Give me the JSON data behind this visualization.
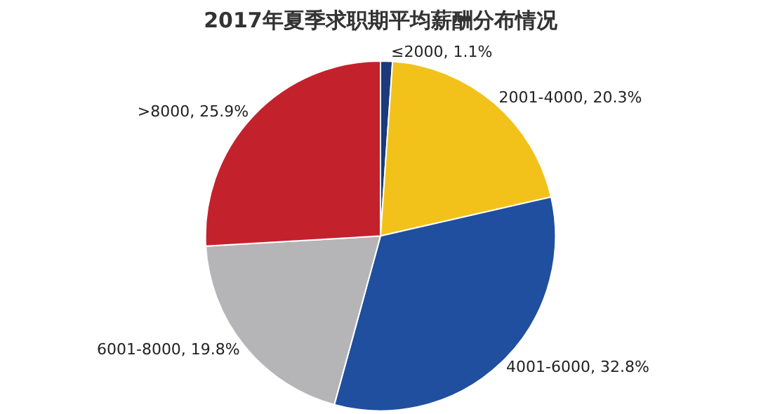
{
  "chart_data": {
    "type": "pie",
    "title": "2017年夏季求职期平均薪酬分布情况",
    "categories": [
      "≤2000",
      "2001-4000",
      "4001-6000",
      "6001-8000",
      ">8000"
    ],
    "values": [
      1.1,
      20.3,
      32.8,
      19.8,
      25.9
    ],
    "colors": [
      "#1c3a7a",
      "#f2c21b",
      "#1f4f9e",
      "#b5b5b8",
      "#c3222c"
    ],
    "value_labels": [
      "1.1%",
      "20.3%",
      "32.8%",
      "19.8%",
      "25.9%"
    ]
  }
}
